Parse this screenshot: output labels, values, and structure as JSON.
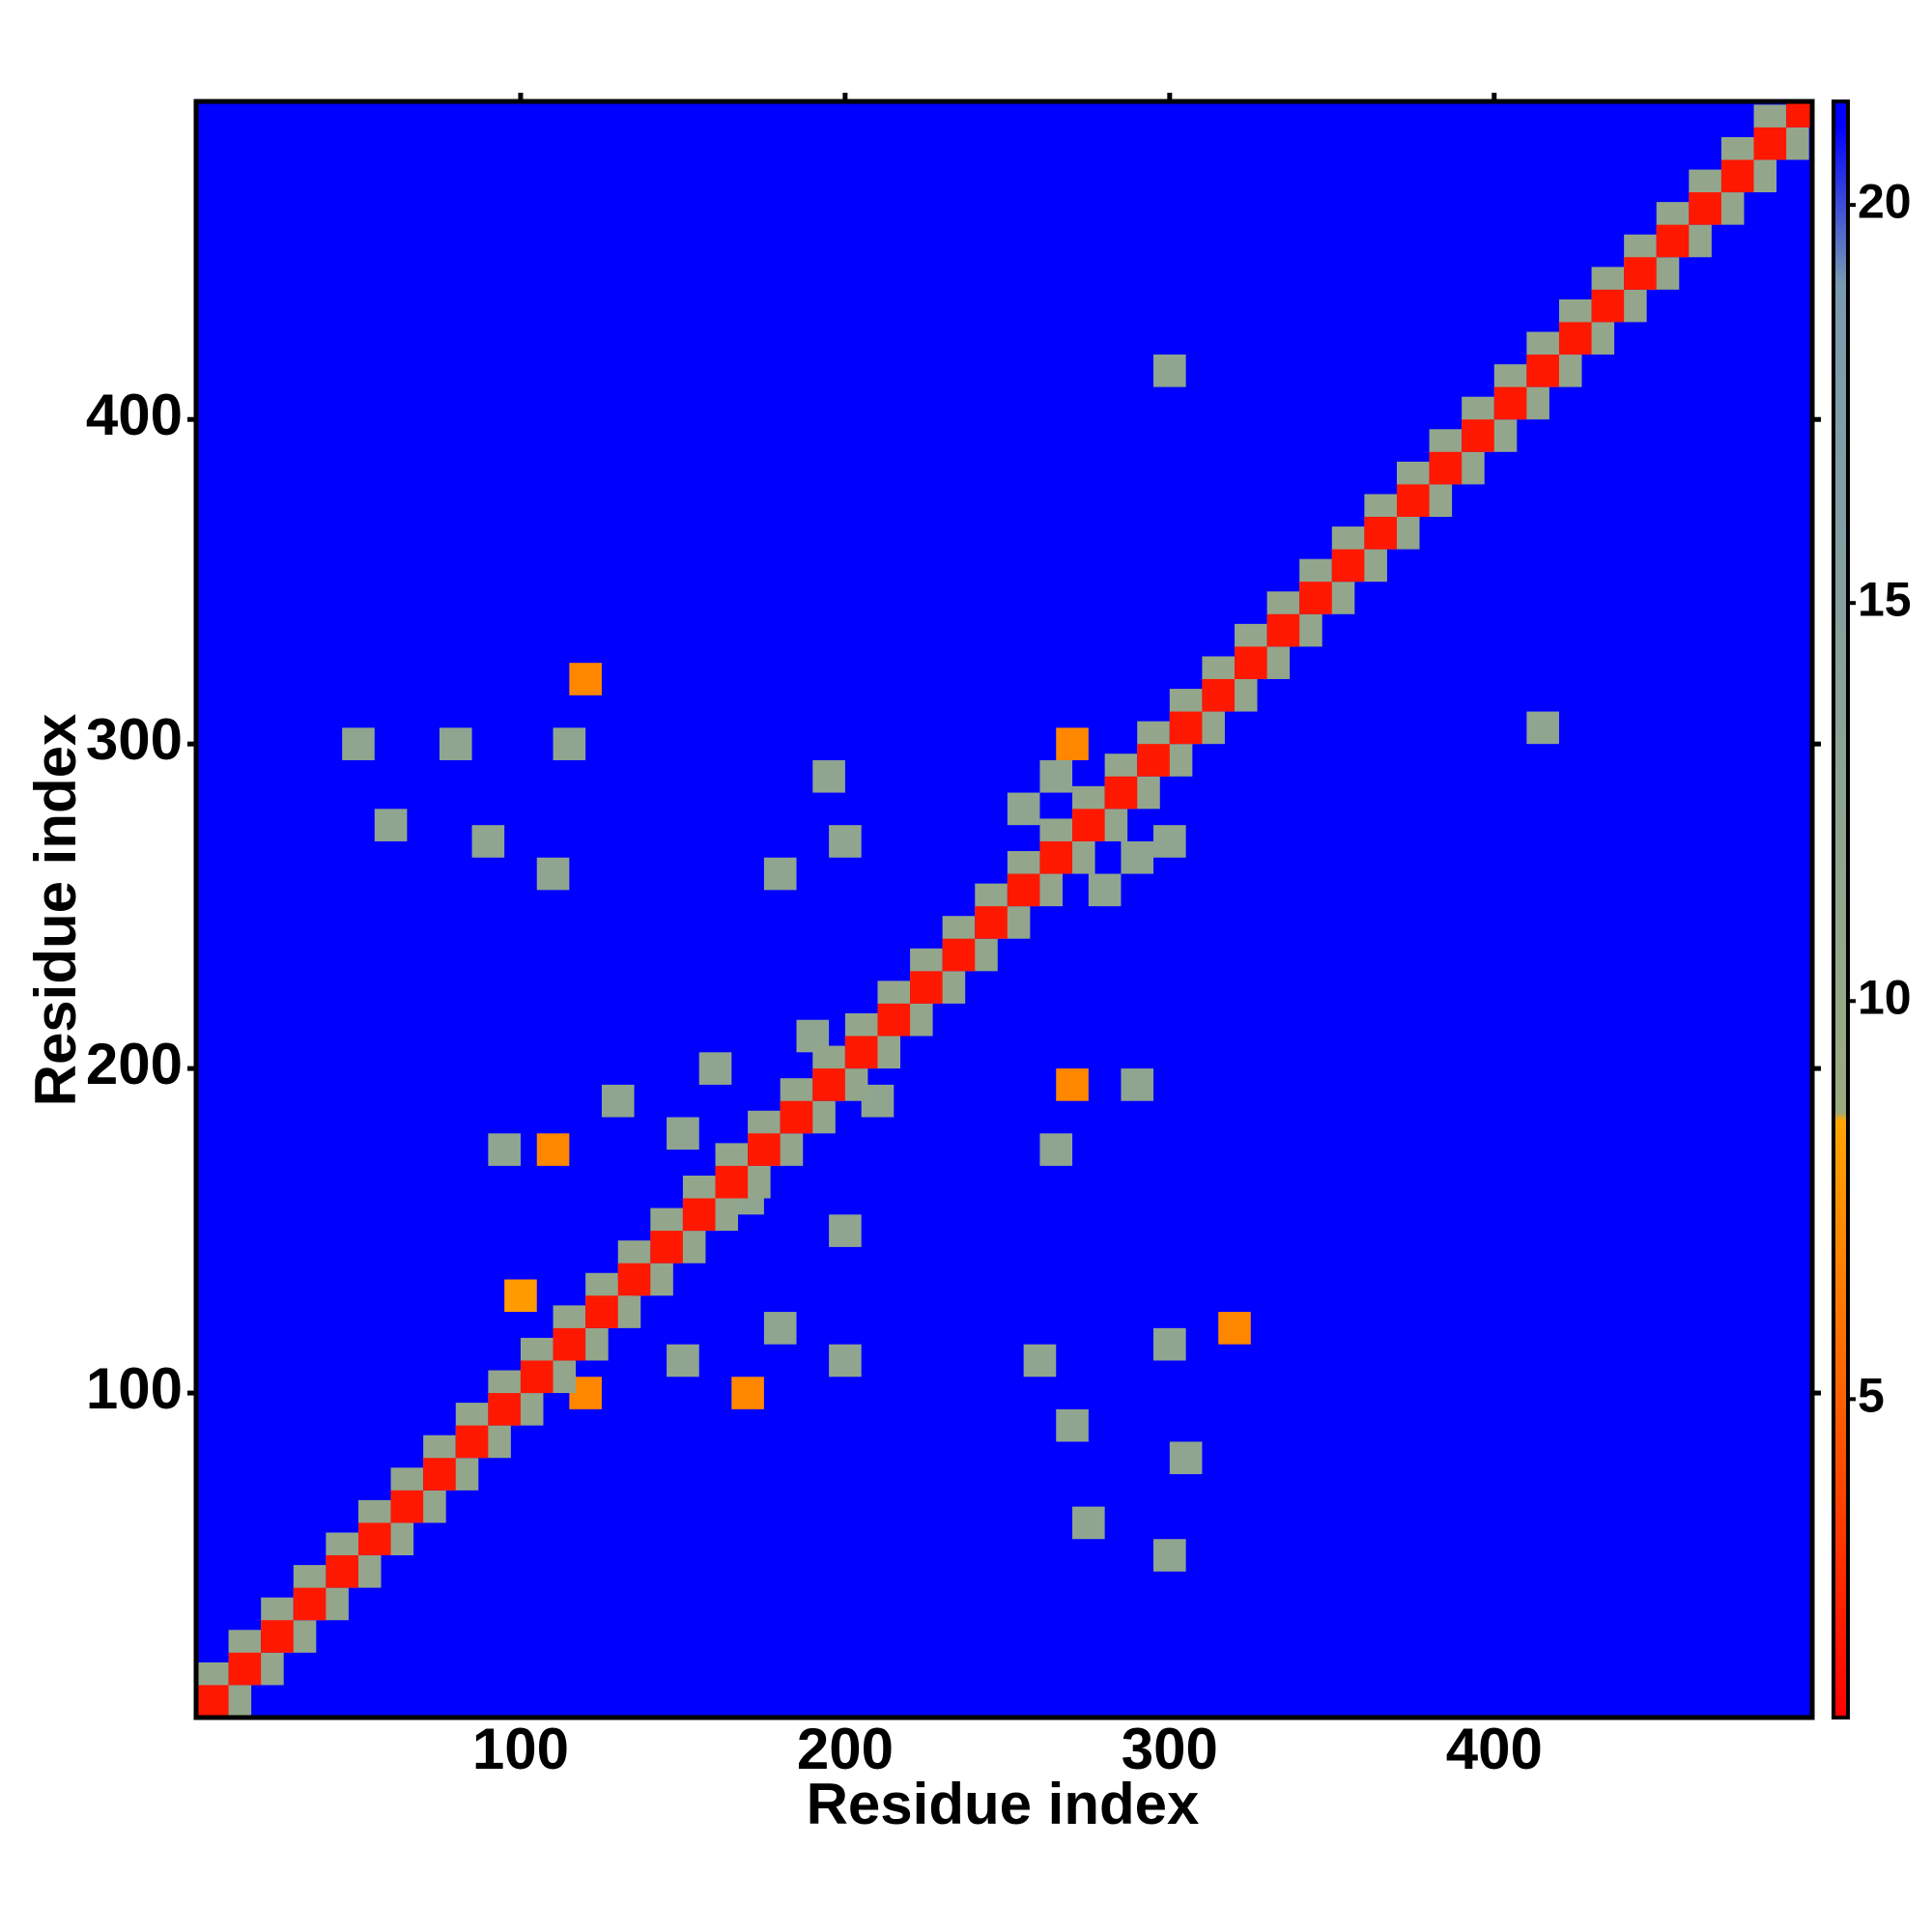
{
  "chart_data": {
    "type": "heatmap",
    "x_label": "Residue index",
    "y_label": "Residue index",
    "xlim": [
      0,
      498
    ],
    "ylim": [
      0,
      498
    ],
    "xticks": [
      100,
      200,
      300,
      400
    ],
    "yticks": [
      100,
      200,
      300,
      400
    ],
    "background_color": "#0000ff",
    "colorbar": {
      "lim": [
        1,
        21.3
      ],
      "ticks": [
        5,
        10,
        15,
        20
      ]
    },
    "color_stops": [
      [
        1,
        "#ff0000"
      ],
      [
        5,
        "#ff6000"
      ],
      [
        8.5,
        "#ffa500"
      ],
      [
        8.6,
        "#9aaa80"
      ],
      [
        19,
        "#7a9ab0"
      ],
      [
        21,
        "#0000ff"
      ]
    ],
    "x": [
      120,
      100,
      130,
      110,
      95,
      150,
      170,
      180,
      170,
      200,
      210,
      190,
      160,
      130,
      200,
      150,
      260,
      270,
      275,
      300,
      305,
      300,
      320,
      265,
      290,
      270,
      300,
      415,
      110,
      90,
      60,
      50,
      80,
      115,
      120,
      180,
      200,
      195,
      265,
      290,
      270,
      300,
      255,
      280,
      5,
      15,
      25,
      35,
      45,
      55,
      65,
      75,
      85,
      95,
      105,
      115,
      125,
      135,
      145,
      155,
      165,
      175,
      185,
      195,
      205,
      215,
      225,
      235,
      245,
      255,
      265,
      275,
      285,
      295,
      305,
      315,
      325,
      335,
      345,
      355,
      365,
      375,
      385,
      395,
      405,
      415,
      425,
      435,
      445,
      455,
      465,
      475,
      485,
      12,
      22,
      32,
      42,
      52,
      62,
      72,
      82,
      92,
      102,
      112,
      122,
      132,
      142,
      152,
      162,
      172,
      182,
      192,
      202,
      212,
      222,
      232,
      242,
      252,
      262,
      272,
      282,
      292,
      302,
      312,
      322,
      332,
      342,
      352,
      362,
      372,
      382,
      392,
      402,
      412,
      422,
      432,
      442,
      452,
      462,
      472,
      482,
      492,
      5,
      15,
      25,
      35,
      45,
      55,
      65,
      75,
      85,
      95,
      105,
      115,
      125,
      135,
      145,
      155,
      165,
      175,
      185,
      195,
      205,
      215,
      225,
      235,
      245,
      255,
      265,
      275,
      285,
      295,
      305,
      315,
      325,
      335,
      345,
      355,
      365,
      375,
      385,
      395,
      405,
      415,
      425,
      435,
      445,
      455,
      465,
      475,
      485,
      495
    ],
    "y": [
      100,
      130,
      130,
      175,
      175,
      180,
      160,
      120,
      100,
      110,
      190,
      210,
      200,
      190,
      150,
      110,
      110,
      90,
      60,
      50,
      80,
      115,
      120,
      175,
      195,
      195,
      415,
      305,
      260,
      270,
      275,
      300,
      300,
      300,
      320,
      260,
      270,
      290,
      290,
      265,
      300,
      270,
      280,
      255,
      12,
      22,
      32,
      42,
      52,
      62,
      72,
      82,
      92,
      102,
      112,
      122,
      132,
      142,
      152,
      162,
      172,
      182,
      192,
      202,
      212,
      222,
      232,
      242,
      252,
      262,
      272,
      282,
      292,
      302,
      312,
      322,
      332,
      342,
      352,
      362,
      372,
      382,
      392,
      402,
      412,
      422,
      432,
      442,
      452,
      462,
      472,
      482,
      492,
      5,
      15,
      25,
      35,
      45,
      55,
      65,
      75,
      85,
      95,
      105,
      115,
      125,
      135,
      145,
      155,
      165,
      175,
      185,
      195,
      205,
      215,
      225,
      235,
      245,
      255,
      265,
      275,
      285,
      295,
      305,
      315,
      325,
      335,
      345,
      355,
      365,
      375,
      385,
      395,
      405,
      415,
      425,
      435,
      445,
      455,
      465,
      475,
      485,
      5,
      15,
      25,
      35,
      45,
      55,
      65,
      75,
      85,
      95,
      105,
      115,
      125,
      135,
      145,
      155,
      165,
      175,
      185,
      195,
      205,
      215,
      225,
      235,
      245,
      255,
      265,
      275,
      285,
      295,
      305,
      315,
      325,
      335,
      345,
      355,
      365,
      375,
      385,
      395,
      405,
      415,
      425,
      435,
      445,
      455,
      465,
      475,
      485,
      495
    ],
    "values": [
      7,
      8,
      12,
      7,
      12,
      12,
      12,
      12,
      7,
      12,
      12,
      12,
      12,
      12,
      12,
      12,
      12,
      12,
      12,
      12,
      12,
      12,
      7,
      12,
      12,
      7,
      12,
      12,
      12,
      12,
      12,
      12,
      12,
      12,
      7,
      12,
      12,
      12,
      12,
      12,
      7,
      12,
      12,
      12,
      11,
      11,
      11,
      11,
      11,
      11,
      11,
      11,
      11,
      11,
      11,
      11,
      11,
      11,
      11,
      11,
      11,
      11,
      11,
      11,
      11,
      11,
      11,
      11,
      11,
      11,
      11,
      11,
      11,
      11,
      11,
      11,
      11,
      11,
      11,
      11,
      11,
      11,
      11,
      11,
      11,
      11,
      11,
      11,
      11,
      11,
      11,
      11,
      11,
      11,
      11,
      11,
      11,
      11,
      11,
      11,
      11,
      11,
      11,
      11,
      11,
      11,
      11,
      11,
      11,
      11,
      11,
      11,
      11,
      11,
      11,
      11,
      11,
      11,
      11,
      11,
      11,
      11,
      11,
      11,
      11,
      11,
      11,
      11,
      11,
      11,
      11,
      11,
      11,
      11,
      11,
      11,
      11,
      11,
      11,
      11,
      11,
      11,
      2,
      2,
      2,
      2,
      2,
      2,
      2,
      2,
      2,
      2,
      2,
      2,
      2,
      2,
      2,
      2,
      2,
      2,
      2,
      2,
      2,
      2,
      2,
      2,
      2,
      2,
      2,
      2,
      2,
      2,
      2,
      2,
      2,
      2,
      2,
      2,
      2,
      2,
      2,
      2,
      2,
      2,
      2,
      2,
      2,
      2,
      2,
      2,
      2,
      2
    ]
  }
}
